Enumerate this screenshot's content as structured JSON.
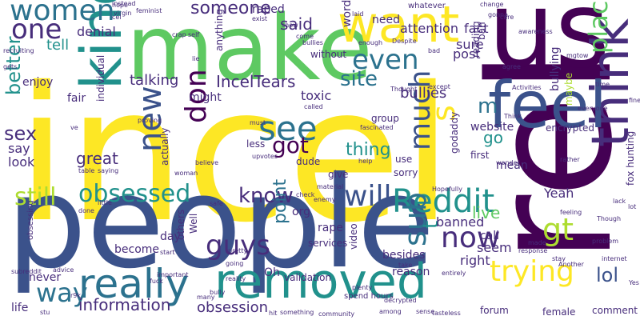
{
  "palette": {
    "dark_purple": "#440154",
    "indigo": "#472d7b",
    "navy": "#3b528b",
    "steel_blue": "#2c728e",
    "teal": "#21918c",
    "sea_green": "#28ae80",
    "green": "#5ec962",
    "lime": "#addc30",
    "yellow": "#fde725"
  },
  "words": {
    "incel": "incel",
    "people": "people",
    "us": "us",
    "rel": "rel",
    "make": "make",
    "want": "want",
    "think": "think",
    "feel": "feel",
    "kind": "kind",
    "removed": "removed",
    "really": "really",
    "new": "new",
    "see": "see",
    "reddit": "Reddit",
    "now": "now",
    "sub": "sub",
    "much": "much",
    "place": "place",
    "women": "women",
    "trying": "trying",
    "one": "one",
    "even": "even",
    "know": "know",
    "will": "will",
    "guys": "guys",
    "s": "s",
    "don": "don",
    "gt": "gt",
    "lol": "lol",
    "way": "way",
    "obsessed": "obsessed",
    "still": "still",
    "incel_tears": "IncelTears",
    "site": "site",
    "said": "said",
    "someone": "someone",
    "got": "got",
    "better": "better",
    "sex": "sex",
    "information": "information",
    "t": "t",
    "m": "m",
    "live": "live",
    "point": "point",
    "bullies": "bullies",
    "great": "great",
    "thing": "thing",
    "obsession": "obsession",
    "talking": "talking",
    "tell": "tell",
    "denial": "denial",
    "fact": "fact",
    "attention": "attention",
    "toxic": "toxic",
    "website": "website",
    "yeah": "Yeah",
    "banned": "banned",
    "right": "right",
    "seem": "seem",
    "go": "go",
    "mean": "mean",
    "enjoy": "enjoy",
    "say": "say",
    "look": "look",
    "post": "post",
    "sure": "sure",
    "need": "need",
    "word": "word",
    "reading": "reading",
    "bullying": "bullying",
    "maybe": "maybe",
    "individual": "individual",
    "fair": "fair",
    "might": "might",
    "anything": "anything",
    "raped": "raped",
    "org": "org",
    "rape": "rape",
    "become": "become",
    "day": "day",
    "others": "others",
    "well": "Well",
    "oh": "Oh",
    "never": "never",
    "life": "life",
    "reason": "reason",
    "validation": "validation",
    "besides": "besides",
    "video": "video",
    "call": "call",
    "services": "services",
    "give": "give",
    "sorry": "sorry",
    "actually": "actually",
    "godaddy": "godaddy",
    "encrypted": "encrypted",
    "first": "first",
    "use": "use",
    "group": "group",
    "dude": "dude",
    "less": "less",
    "comment": "comment",
    "female": "female",
    "forum": "forum",
    "fox_hunting": "fox hunting",
    "ban": "ban",
    "without": "without",
    "whatever": "whatever",
    "spend_hours": "spend hours",
    "obsessing": "obsessing",
    "feminist": "feminist",
    "instead": "instead",
    "virgin": "virgin",
    "time": "time",
    "lot": "lot",
    "exist": "exist",
    "laid": "laid",
    "change": "change",
    "gonna": "gonna",
    "care": "care",
    "awareness": "awareness",
    "mgtow": "mgtow",
    "agree": "agree",
    "despite": "Despite",
    "enough": "enough",
    "bad": "bad",
    "except": "except",
    "thought": "Thought",
    "activities": "Activities",
    "think_sm": "Think",
    "everyone": "everyone",
    "called": "called",
    "fascinated": "fascinated",
    "proving": "proving",
    "upvotes": "upvotes",
    "wonder": "wonder",
    "rather": "rather",
    "woman": "woman",
    "believe": "believe",
    "table": "table",
    "saying": "saying",
    "cel": "cel",
    "ve": "ve",
    "crap": "crap",
    "self": "self",
    "lie": "lie",
    "safe": "safe",
    "material": "material",
    "hopefully": "Hopefully",
    "check": "check",
    "enemy": "enemy",
    "done": "done",
    "little": "little",
    "pretty": "pretty",
    "going": "going",
    "start": "start",
    "advice": "advice",
    "important": "important",
    "reality": "reality",
    "fuck": "fuck",
    "many": "many",
    "something": "something",
    "community": "community",
    "among": "among",
    "sense": "sense",
    "tasteless": "tasteless",
    "decrypted": "decrypted",
    "plenty": "plenty",
    "entirely": "entirely",
    "take": "take",
    "made": "made",
    "response": "response",
    "stay": "stay",
    "another": "Another",
    "problem": "problem",
    "internet": "internet",
    "lack": "lack",
    "though": "Though",
    "yes": "Yes",
    "feeling": "feeling",
    "hope": "hope",
    "subreddit": "subreddit",
    "r9k": "r9k",
    "gets": "gets",
    "must": "must",
    "help": "help",
    "fine": "fine",
    "come": "come",
    "bullies_sm": "bullies",
    "show": "show",
    "recruiting": "recruiting",
    "bully": "bully",
    "hit": "hit",
    "stu": "stu"
  }
}
